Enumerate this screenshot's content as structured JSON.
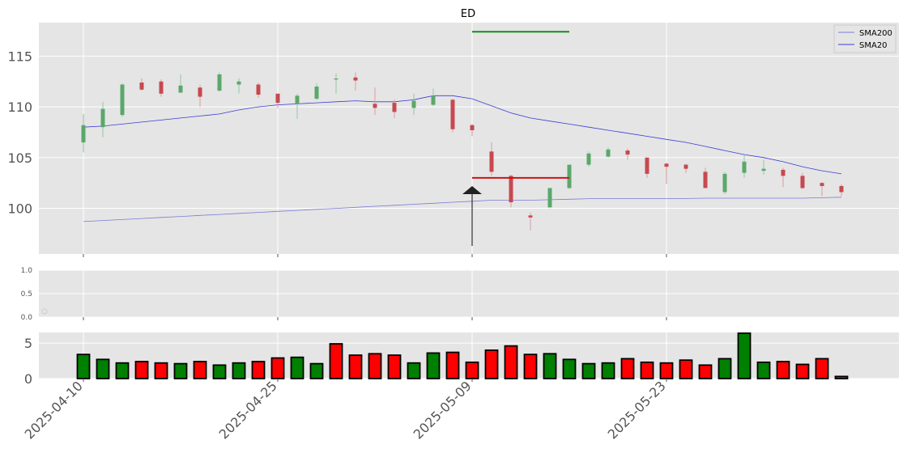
{
  "chart_data": {
    "type": "candlestick",
    "title": "ED",
    "x_tick_labels": [
      "2025-04-10",
      "2025-04-25",
      "2025-05-09",
      "2025-05-23"
    ],
    "price_panel": {
      "ylim": [
        95.5,
        118.3
      ],
      "y_ticks": [
        100,
        105,
        110,
        115
      ],
      "grid": true,
      "legend": {
        "placement": "top-right",
        "entries": [
          "SMA200",
          "SMA20"
        ]
      },
      "candles": [
        {
          "o": 106.5,
          "h": 109.3,
          "l": 105.5,
          "c": 108.2
        },
        {
          "o": 108.0,
          "h": 110.5,
          "l": 107.0,
          "c": 109.8
        },
        {
          "o": 109.2,
          "h": 112.3,
          "l": 109.0,
          "c": 112.2
        },
        {
          "o": 112.4,
          "h": 112.8,
          "l": 111.6,
          "c": 111.7
        },
        {
          "o": 112.5,
          "h": 112.7,
          "l": 111.0,
          "c": 111.3
        },
        {
          "o": 111.4,
          "h": 113.2,
          "l": 111.4,
          "c": 112.1
        },
        {
          "o": 111.9,
          "h": 112.2,
          "l": 110.0,
          "c": 111.0
        },
        {
          "o": 111.6,
          "h": 113.4,
          "l": 111.5,
          "c": 113.2
        },
        {
          "o": 112.2,
          "h": 112.8,
          "l": 111.3,
          "c": 112.5
        },
        {
          "o": 112.2,
          "h": 112.4,
          "l": 110.9,
          "c": 111.2
        },
        {
          "o": 111.3,
          "h": 111.3,
          "l": 109.9,
          "c": 110.4
        },
        {
          "o": 110.3,
          "h": 111.3,
          "l": 108.8,
          "c": 111.1
        },
        {
          "o": 110.8,
          "h": 112.3,
          "l": 110.7,
          "c": 112.0
        },
        {
          "o": 112.7,
          "h": 113.3,
          "l": 111.3,
          "c": 112.8
        },
        {
          "o": 112.9,
          "h": 113.4,
          "l": 111.6,
          "c": 112.6
        },
        {
          "o": 110.3,
          "h": 111.9,
          "l": 109.2,
          "c": 109.9
        },
        {
          "o": 110.4,
          "h": 110.7,
          "l": 108.9,
          "c": 109.5
        },
        {
          "o": 109.9,
          "h": 111.3,
          "l": 109.2,
          "c": 110.6
        },
        {
          "o": 110.2,
          "h": 111.8,
          "l": 110.1,
          "c": 111.1
        },
        {
          "o": 110.7,
          "h": 110.8,
          "l": 107.5,
          "c": 107.8
        },
        {
          "o": 108.2,
          "h": 108.3,
          "l": 107.1,
          "c": 107.7
        },
        {
          "o": 105.6,
          "h": 106.5,
          "l": 103.2,
          "c": 103.6
        },
        {
          "o": 103.2,
          "h": 103.3,
          "l": 100.1,
          "c": 100.6
        },
        {
          "o": 99.3,
          "h": 99.6,
          "l": 97.8,
          "c": 99.1
        },
        {
          "o": 100.1,
          "h": 102.0,
          "l": 100.0,
          "c": 102.0
        },
        {
          "o": 102.0,
          "h": 104.3,
          "l": 101.9,
          "c": 104.3
        },
        {
          "o": 104.3,
          "h": 105.6,
          "l": 104.1,
          "c": 105.4
        },
        {
          "o": 105.1,
          "h": 106.0,
          "l": 105.0,
          "c": 105.8
        },
        {
          "o": 105.7,
          "h": 105.9,
          "l": 104.8,
          "c": 105.3
        },
        {
          "o": 105.0,
          "h": 105.0,
          "l": 103.0,
          "c": 103.4
        },
        {
          "o": 104.4,
          "h": 104.5,
          "l": 102.4,
          "c": 104.1
        },
        {
          "o": 104.3,
          "h": 104.4,
          "l": 103.5,
          "c": 103.9
        },
        {
          "o": 103.6,
          "h": 104.0,
          "l": 102.0,
          "c": 102.0
        },
        {
          "o": 101.6,
          "h": 103.6,
          "l": 101.4,
          "c": 103.4
        },
        {
          "o": 103.5,
          "h": 105.2,
          "l": 103.0,
          "c": 104.6
        },
        {
          "o": 103.7,
          "h": 104.8,
          "l": 103.3,
          "c": 103.9
        },
        {
          "o": 103.8,
          "h": 104.0,
          "l": 102.1,
          "c": 103.2
        },
        {
          "o": 103.2,
          "h": 103.5,
          "l": 101.9,
          "c": 102.0
        },
        {
          "o": 102.5,
          "h": 102.6,
          "l": 101.2,
          "c": 102.2
        },
        {
          "o": 102.2,
          "h": 102.4,
          "l": 101.2,
          "c": 101.6
        }
      ],
      "series": [
        {
          "name": "SMA200",
          "color": "#7b7bd6",
          "values": [
            98.7,
            98.8,
            98.9,
            99.0,
            99.1,
            99.2,
            99.3,
            99.4,
            99.5,
            99.6,
            99.7,
            99.8,
            99.9,
            100.0,
            100.1,
            100.2,
            100.3,
            100.4,
            100.5,
            100.6,
            100.7,
            100.8,
            100.8,
            100.8,
            100.85,
            100.9,
            100.95,
            100.95,
            100.95,
            100.95,
            100.95,
            100.97,
            101.0,
            101.0,
            101.0,
            101.0,
            101.0,
            101.0,
            101.05,
            101.1
          ]
        },
        {
          "name": "SMA20",
          "color": "#3b3bd6",
          "values": [
            108.0,
            108.1,
            108.3,
            108.5,
            108.7,
            108.9,
            109.1,
            109.3,
            109.7,
            110.0,
            110.2,
            110.3,
            110.4,
            110.5,
            110.6,
            110.5,
            110.5,
            110.7,
            111.1,
            111.1,
            110.8,
            110.1,
            109.4,
            108.9,
            108.6,
            108.3,
            108.0,
            107.7,
            107.4,
            107.1,
            106.8,
            106.5,
            106.1,
            105.7,
            105.3,
            105.0,
            104.6,
            104.1,
            103.7,
            103.4
          ]
        }
      ],
      "annotations": {
        "green_line": {
          "price": 117.4,
          "x_from": 20,
          "x_to": 25,
          "color": "#1a8a1a"
        },
        "red_line": {
          "price": 103.0,
          "x_from": 20,
          "x_to": 25,
          "color": "#cc1111"
        },
        "arrow": {
          "x": 20,
          "tip": 102.2,
          "base": 96.3
        }
      }
    },
    "middle_panel": {
      "ylim": [
        0,
        1
      ],
      "y_ticks": [
        "0.0",
        "0.5",
        "1.0"
      ],
      "marker": {
        "x": -2,
        "y": 0.12
      }
    },
    "volume_panel": {
      "ylim": [
        0,
        6.5
      ],
      "y_ticks": [
        0,
        5
      ],
      "values": [
        3.4,
        2.7,
        2.2,
        2.4,
        2.2,
        2.1,
        2.4,
        1.9,
        2.2,
        2.4,
        2.9,
        3.0,
        2.1,
        4.9,
        3.3,
        3.5,
        3.3,
        2.2,
        3.6,
        3.7,
        2.3,
        4.0,
        4.6,
        3.4,
        3.5,
        2.7,
        2.1,
        2.2,
        2.8,
        2.3,
        2.2,
        2.6,
        1.9,
        2.8,
        6.4,
        2.3,
        2.4,
        2.0,
        2.8,
        0.3
      ],
      "colors": [
        "green",
        "green",
        "green",
        "red",
        "red",
        "green",
        "red",
        "green",
        "green",
        "red",
        "red",
        "green",
        "green",
        "red",
        "red",
        "red",
        "red",
        "green",
        "green",
        "red",
        "red",
        "red",
        "red",
        "red",
        "green",
        "green",
        "green",
        "green",
        "red",
        "red",
        "red",
        "red",
        "red",
        "green",
        "green",
        "green",
        "red",
        "red",
        "red",
        "red"
      ]
    }
  }
}
